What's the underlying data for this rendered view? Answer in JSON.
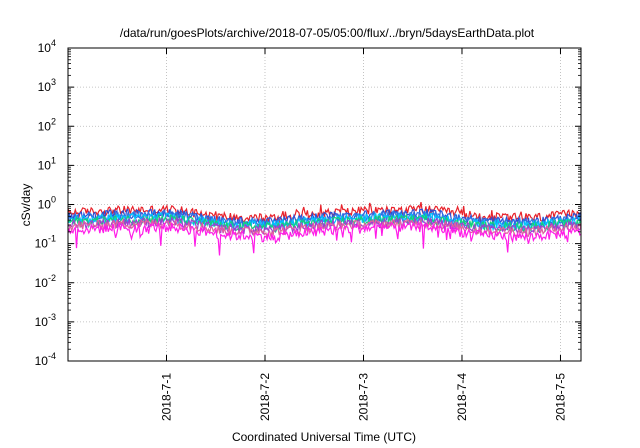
{
  "chart_data": {
    "type": "line",
    "title": "/data/run/goesPlots/archive/2018-07-05/05:00/flux/../bryn/5daysEarthData.plot",
    "xlabel": "Coordinated Universal Time (UTC)",
    "ylabel": "cSv/day",
    "x_ticks": [
      "2018-7-1",
      "2018-7-2",
      "2018-7-3",
      "2018-7-4",
      "2018-7-5"
    ],
    "xlim": [
      "2018-06-30T00:00",
      "2018-07-05T05:00"
    ],
    "y_scale": "log",
    "ylim": [
      0.0001,
      10000
    ],
    "y_ticks": [
      {
        "base": "10",
        "exp": "-4"
      },
      {
        "base": "10",
        "exp": "-3"
      },
      {
        "base": "10",
        "exp": "-2"
      },
      {
        "base": "10",
        "exp": "-1"
      },
      {
        "base": "10",
        "exp": "0"
      },
      {
        "base": "10",
        "exp": "1"
      },
      {
        "base": "10",
        "exp": "2"
      },
      {
        "base": "10",
        "exp": "3"
      },
      {
        "base": "10",
        "exp": "4"
      }
    ],
    "grid": true,
    "legend": "none",
    "series": [
      {
        "color": "#e8212a",
        "values": [
          0.62,
          0.72,
          0.75,
          0.5,
          0.45,
          0.62,
          0.72,
          0.75,
          0.5,
          0.45,
          0.6
        ]
      },
      {
        "color": "#2b4fd6",
        "values": [
          0.5,
          0.58,
          0.6,
          0.4,
          0.36,
          0.5,
          0.58,
          0.6,
          0.4,
          0.36,
          0.48
        ]
      },
      {
        "color": "#2f79e6",
        "values": [
          0.45,
          0.52,
          0.55,
          0.36,
          0.33,
          0.45,
          0.52,
          0.55,
          0.36,
          0.33,
          0.44
        ]
      },
      {
        "color": "#00c4ff",
        "values": [
          0.4,
          0.46,
          0.48,
          0.32,
          0.3,
          0.4,
          0.46,
          0.48,
          0.32,
          0.3,
          0.38
        ]
      },
      {
        "color": "#12d27a",
        "values": [
          0.36,
          0.41,
          0.43,
          0.29,
          0.27,
          0.36,
          0.41,
          0.43,
          0.29,
          0.27,
          0.35
        ]
      },
      {
        "color": "#a13bd2",
        "values": [
          0.31,
          0.35,
          0.37,
          0.25,
          0.23,
          0.31,
          0.35,
          0.37,
          0.25,
          0.23,
          0.3
        ]
      },
      {
        "color": "#e060a0",
        "values": [
          0.28,
          0.32,
          0.34,
          0.22,
          0.21,
          0.28,
          0.32,
          0.34,
          0.22,
          0.21,
          0.27
        ]
      },
      {
        "color": "#ff1ce8",
        "values": [
          0.22,
          0.26,
          0.27,
          0.17,
          0.15,
          0.22,
          0.26,
          0.27,
          0.17,
          0.15,
          0.2
        ]
      }
    ]
  }
}
